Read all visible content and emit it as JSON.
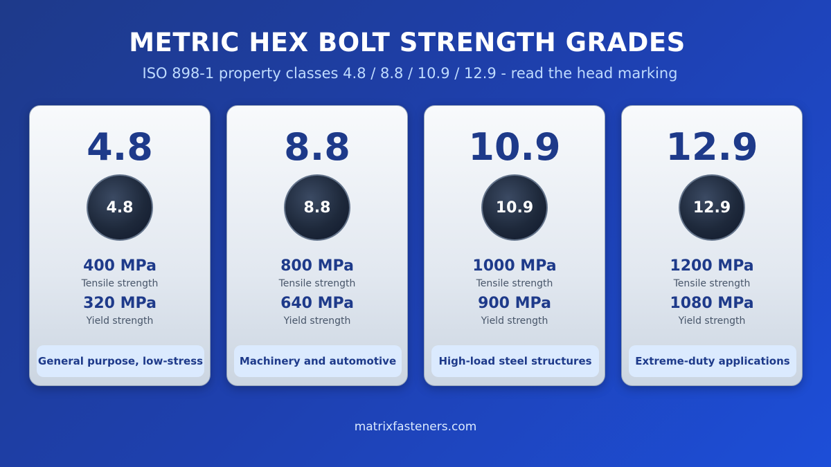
{
  "header": {
    "title": "METRIC HEX BOLT STRENGTH GRADES",
    "subtitle": "ISO 898-1 property classes 4.8 / 8.8 / 10.9 / 12.9 - read the head marking"
  },
  "cards": [
    {
      "grade": "4.8",
      "tensile": {
        "value": "400 MPa",
        "label": "Tensile strength"
      },
      "yield": {
        "value": "320 MPa",
        "label": "Yield strength"
      },
      "use": "General purpose, low-stress"
    },
    {
      "grade": "8.8",
      "tensile": {
        "value": "800 MPa",
        "label": "Tensile strength"
      },
      "yield": {
        "value": "640 MPa",
        "label": "Yield strength"
      },
      "use": "Machinery and automotive"
    },
    {
      "grade": "10.9",
      "tensile": {
        "value": "1000 MPa",
        "label": "Tensile strength"
      },
      "yield": {
        "value": "900 MPa",
        "label": "Yield strength"
      },
      "use": "High-load steel structures"
    },
    {
      "grade": "12.9",
      "tensile": {
        "value": "1200 MPa",
        "label": "Tensile strength"
      },
      "yield": {
        "value": "1080 MPa",
        "label": "Yield strength"
      },
      "use": "Extreme-duty applications"
    }
  ],
  "footer": "matrixfasteners.com"
}
